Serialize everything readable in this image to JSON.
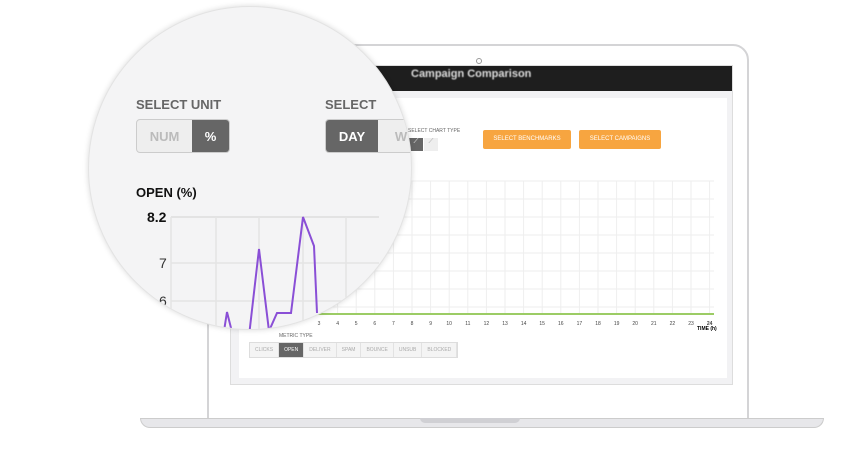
{
  "laptop_screen": {
    "title": "Campaign Comparison",
    "chart_type_label": "SELECT CHART TYPE",
    "chart_type_icons": [
      "line-chart-icon",
      "area-chart-icon"
    ],
    "select_benchmarks": "SELECT BENCHMARKS",
    "select_campaigns": "SELECT CAMPAIGNS",
    "x_ticks": [
      "3",
      "4",
      "5",
      "6",
      "7",
      "8",
      "9",
      "10",
      "11",
      "12",
      "13",
      "14",
      "15",
      "16",
      "17",
      "18",
      "19",
      "20",
      "21",
      "22",
      "23",
      "24"
    ],
    "x_axis_label": "TIME (h)",
    "metric_type_label": "METRIC TYPE",
    "metric_tabs": [
      "CLICKS",
      "OPEN",
      "DELIVER",
      "SPAM",
      "BOUNCE",
      "UNSUB",
      "BLOCKED"
    ],
    "active_metric": "OPEN",
    "benchmark_line_color": "#9ccc65",
    "accent_color": "#f7a540"
  },
  "magnifier": {
    "select_unit_label": "SELECT UNIT",
    "unit_options": [
      "NUM",
      "%"
    ],
    "active_unit": "%",
    "select_period_label": "SELECT",
    "period_options": [
      "DAY",
      "W"
    ],
    "active_period": "DAY",
    "chart_title": "OPEN (%)",
    "y_ticks": [
      "8.2",
      "7",
      "6"
    ],
    "series_color": "#8a4fd6"
  }
}
